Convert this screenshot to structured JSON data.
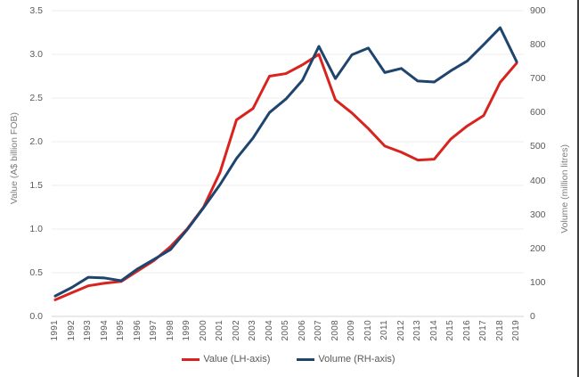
{
  "chart_data": {
    "type": "line",
    "title": "",
    "x": [
      1991,
      1992,
      1993,
      1994,
      1995,
      1996,
      1997,
      1998,
      1999,
      2000,
      2001,
      2002,
      2003,
      2004,
      2005,
      2006,
      2007,
      2008,
      2009,
      2010,
      2011,
      2012,
      2013,
      2014,
      2015,
      2016,
      2017,
      2018,
      2019
    ],
    "x_tick_labels": [
      "1991",
      "1992",
      "1993",
      "1994",
      "1995",
      "1996",
      "1997",
      "1998",
      "1999",
      "2000",
      "2001",
      "2002",
      "2003",
      "2004",
      "2005",
      "2006",
      "2007",
      "2008",
      "2009",
      "2010",
      "2011",
      "2012",
      "2013",
      "2014",
      "2015",
      "2016",
      "2017",
      "2018",
      "2019"
    ],
    "series": [
      {
        "name": "Value (LH-axis)",
        "axis": "left",
        "color": "#d8231f",
        "values": [
          0.19,
          0.27,
          0.35,
          0.38,
          0.4,
          0.52,
          0.64,
          0.8,
          1.0,
          1.25,
          1.65,
          2.25,
          2.38,
          2.75,
          2.78,
          2.88,
          3.0,
          2.48,
          2.33,
          2.15,
          1.95,
          1.88,
          1.79,
          1.8,
          2.03,
          2.18,
          2.3,
          2.68,
          2.9
        ]
      },
      {
        "name": "Volume (RH-axis)",
        "axis": "right",
        "color": "#1f456e",
        "values": [
          60,
          85,
          115,
          113,
          105,
          140,
          168,
          197,
          255,
          320,
          388,
          465,
          525,
          600,
          640,
          695,
          795,
          700,
          770,
          790,
          718,
          730,
          693,
          690,
          723,
          752,
          800,
          850,
          750
        ]
      }
    ],
    "left_axis": {
      "label": "Value (A$ billion FOB)",
      "min": 0,
      "max": 3.5,
      "step": 0.5,
      "tick_labels": [
        "0.0",
        "0.5",
        "1.0",
        "1.5",
        "2.0",
        "2.5",
        "3.0",
        "3.5"
      ]
    },
    "right_axis": {
      "label": "Volume (million litres)",
      "min": 0,
      "max": 900,
      "step": 100,
      "tick_labels": [
        "0",
        "100",
        "200",
        "300",
        "400",
        "500",
        "600",
        "700",
        "800",
        "900"
      ]
    },
    "grid": true,
    "legend_position": "bottom"
  },
  "colors": {
    "value_line": "#d8231f",
    "volume_line": "#1f456e",
    "grid_line": "#ededed",
    "axis_line": "#d6d6d6",
    "tick_text": "#595959",
    "axis_title_text": "#7f7f7f"
  }
}
